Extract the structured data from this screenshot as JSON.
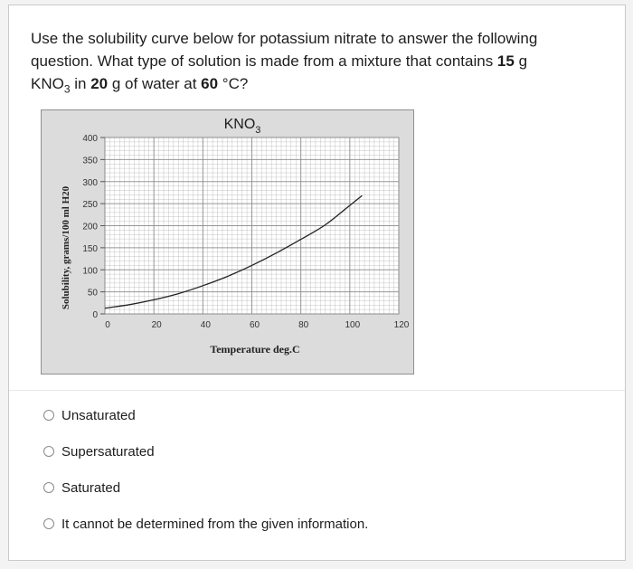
{
  "question": {
    "line1": "Use the solubility curve below for potassium nitrate to answer the following",
    "line2_pre": "question.  What type of solution is made from a mixture that contains ",
    "line2_bold": "15",
    "line2_post": " g",
    "line3_formula": "KNO",
    "line3_sub": "3",
    "line3_mid": " in ",
    "line3_bold1": "20",
    "line3_mid2": " g of water at ",
    "line3_bold2": "60",
    "line3_post": " °C?"
  },
  "chart_data": {
    "type": "line",
    "title": "KNO",
    "title_sub": "3",
    "xlabel": "Temperature  deg.C",
    "ylabel": "Solubility, grams/100 ml H20",
    "xlim": [
      0,
      120
    ],
    "ylim": [
      0,
      400
    ],
    "x_ticks": [
      "0",
      "20",
      "40",
      "60",
      "80",
      "100",
      "120"
    ],
    "y_ticks": [
      "0",
      "50",
      "100",
      "150",
      "200",
      "250",
      "300",
      "350",
      "400"
    ],
    "grid": true,
    "series": [
      {
        "x": [
          0,
          10,
          20,
          30,
          40,
          50,
          60,
          70,
          80,
          90,
          100,
          105
        ],
        "y": [
          13,
          21,
          32,
          46,
          64,
          85,
          110,
          138,
          169,
          202,
          246,
          268
        ]
      }
    ]
  },
  "options": [
    {
      "label": "Unsaturated"
    },
    {
      "label": "Supersaturated"
    },
    {
      "label": "Saturated"
    },
    {
      "label": "It cannot be determined from the given information."
    }
  ],
  "colors": {
    "chart_bg": "#dcdcdc",
    "plot_bg": "#ffffff",
    "grid": "#8c8c8c",
    "curve": "#222222"
  }
}
